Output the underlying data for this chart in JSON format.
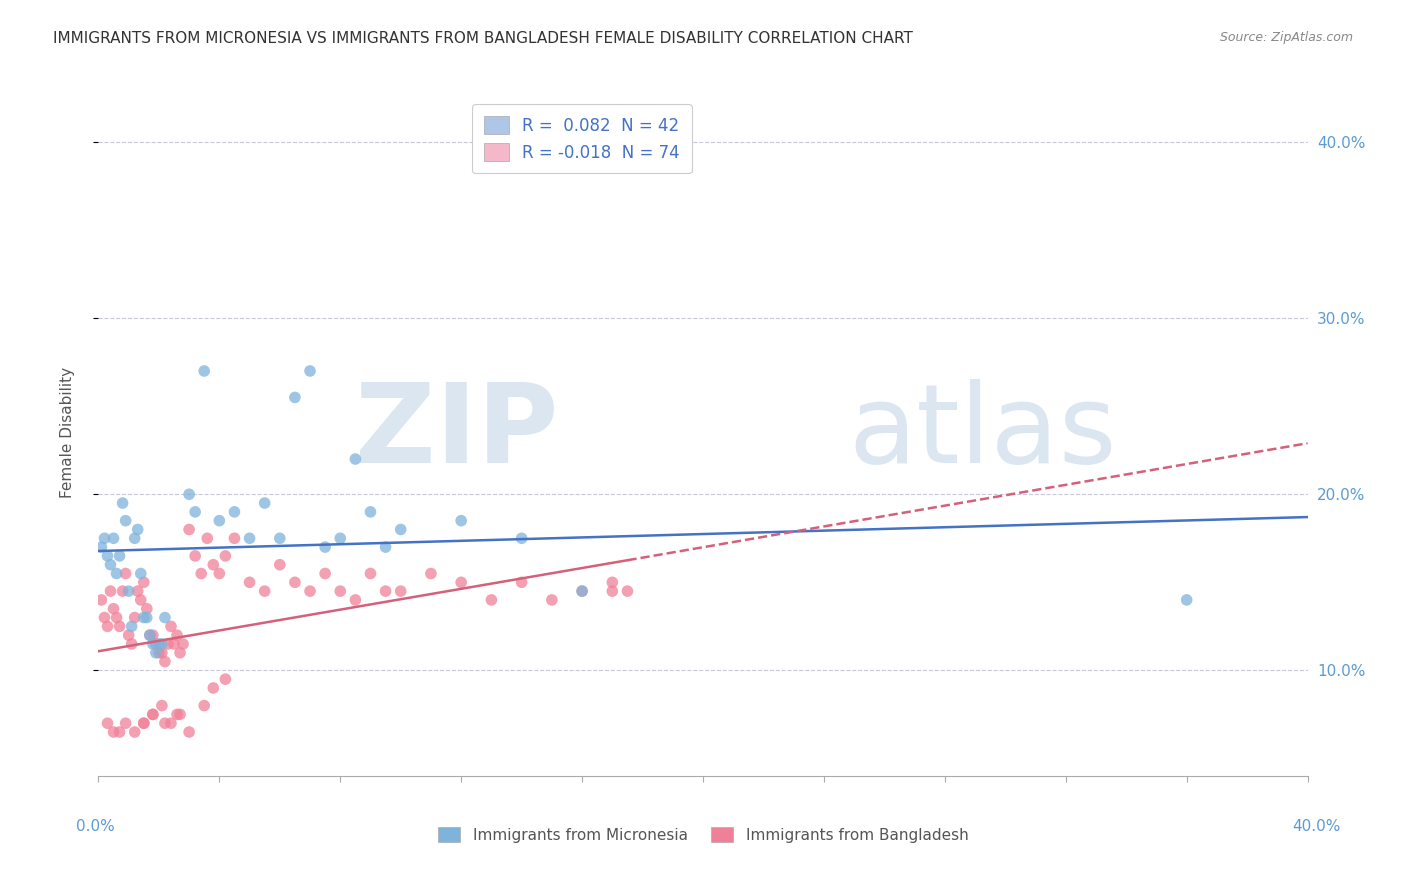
{
  "title": "IMMIGRANTS FROM MICRONESIA VS IMMIGRANTS FROM BANGLADESH FEMALE DISABILITY CORRELATION CHART",
  "source": "Source: ZipAtlas.com",
  "ylabel": "Female Disability",
  "watermark": "ZIPatlas",
  "legend": [
    {
      "label": "R =  0.082  N = 42",
      "color": "#aec6e8"
    },
    {
      "label": "R = -0.018  N = 74",
      "color": "#f4b8c8"
    }
  ],
  "series1_label": "Immigrants from Micronesia",
  "series2_label": "Immigrants from Bangladesh",
  "series1_color": "#7eb3db",
  "series2_color": "#f08098",
  "line1_color": "#4472c4",
  "line2_color": "#d4607a",
  "background_color": "#ffffff",
  "grid_color": "#c8c8d8",
  "xlim": [
    0.0,
    0.4
  ],
  "ylim": [
    0.04,
    0.43
  ],
  "yticks": [
    0.1,
    0.2,
    0.3,
    0.4
  ],
  "ytick_labels": [
    "10.0%",
    "20.0%",
    "30.0%",
    "40.0%"
  ],
  "micronesia_x": [
    0.001,
    0.002,
    0.003,
    0.004,
    0.005,
    0.006,
    0.007,
    0.008,
    0.009,
    0.01,
    0.011,
    0.012,
    0.013,
    0.014,
    0.015,
    0.016,
    0.017,
    0.018,
    0.019,
    0.02,
    0.021,
    0.022,
    0.03,
    0.032,
    0.035,
    0.04,
    0.045,
    0.05,
    0.055,
    0.06,
    0.065,
    0.07,
    0.075,
    0.08,
    0.085,
    0.09,
    0.095,
    0.1,
    0.12,
    0.14,
    0.16,
    0.36
  ],
  "micronesia_y": [
    0.17,
    0.175,
    0.165,
    0.16,
    0.175,
    0.155,
    0.165,
    0.195,
    0.185,
    0.145,
    0.125,
    0.175,
    0.18,
    0.155,
    0.13,
    0.13,
    0.12,
    0.115,
    0.11,
    0.115,
    0.115,
    0.13,
    0.2,
    0.19,
    0.27,
    0.185,
    0.19,
    0.175,
    0.195,
    0.175,
    0.255,
    0.27,
    0.17,
    0.175,
    0.22,
    0.19,
    0.17,
    0.18,
    0.185,
    0.175,
    0.145,
    0.14
  ],
  "bangladesh_x": [
    0.001,
    0.002,
    0.003,
    0.004,
    0.005,
    0.006,
    0.007,
    0.008,
    0.009,
    0.01,
    0.011,
    0.012,
    0.013,
    0.014,
    0.015,
    0.016,
    0.017,
    0.018,
    0.019,
    0.02,
    0.021,
    0.022,
    0.023,
    0.024,
    0.025,
    0.026,
    0.027,
    0.028,
    0.03,
    0.032,
    0.034,
    0.036,
    0.038,
    0.04,
    0.042,
    0.045,
    0.05,
    0.055,
    0.06,
    0.065,
    0.07,
    0.075,
    0.08,
    0.085,
    0.09,
    0.095,
    0.1,
    0.11,
    0.12,
    0.13,
    0.14,
    0.15,
    0.16,
    0.17,
    0.035,
    0.038,
    0.042,
    0.015,
    0.018,
    0.021,
    0.024,
    0.027,
    0.003,
    0.005,
    0.007,
    0.009,
    0.012,
    0.015,
    0.018,
    0.022,
    0.026,
    0.03,
    0.17,
    0.175
  ],
  "bangladesh_y": [
    0.14,
    0.13,
    0.125,
    0.145,
    0.135,
    0.13,
    0.125,
    0.145,
    0.155,
    0.12,
    0.115,
    0.13,
    0.145,
    0.14,
    0.15,
    0.135,
    0.12,
    0.12,
    0.115,
    0.11,
    0.11,
    0.105,
    0.115,
    0.125,
    0.115,
    0.12,
    0.11,
    0.115,
    0.18,
    0.165,
    0.155,
    0.175,
    0.16,
    0.155,
    0.165,
    0.175,
    0.15,
    0.145,
    0.16,
    0.15,
    0.145,
    0.155,
    0.145,
    0.14,
    0.155,
    0.145,
    0.145,
    0.155,
    0.15,
    0.14,
    0.15,
    0.14,
    0.145,
    0.15,
    0.08,
    0.09,
    0.095,
    0.07,
    0.075,
    0.08,
    0.07,
    0.075,
    0.07,
    0.065,
    0.065,
    0.07,
    0.065,
    0.07,
    0.075,
    0.07,
    0.075,
    0.065,
    0.145,
    0.145
  ]
}
